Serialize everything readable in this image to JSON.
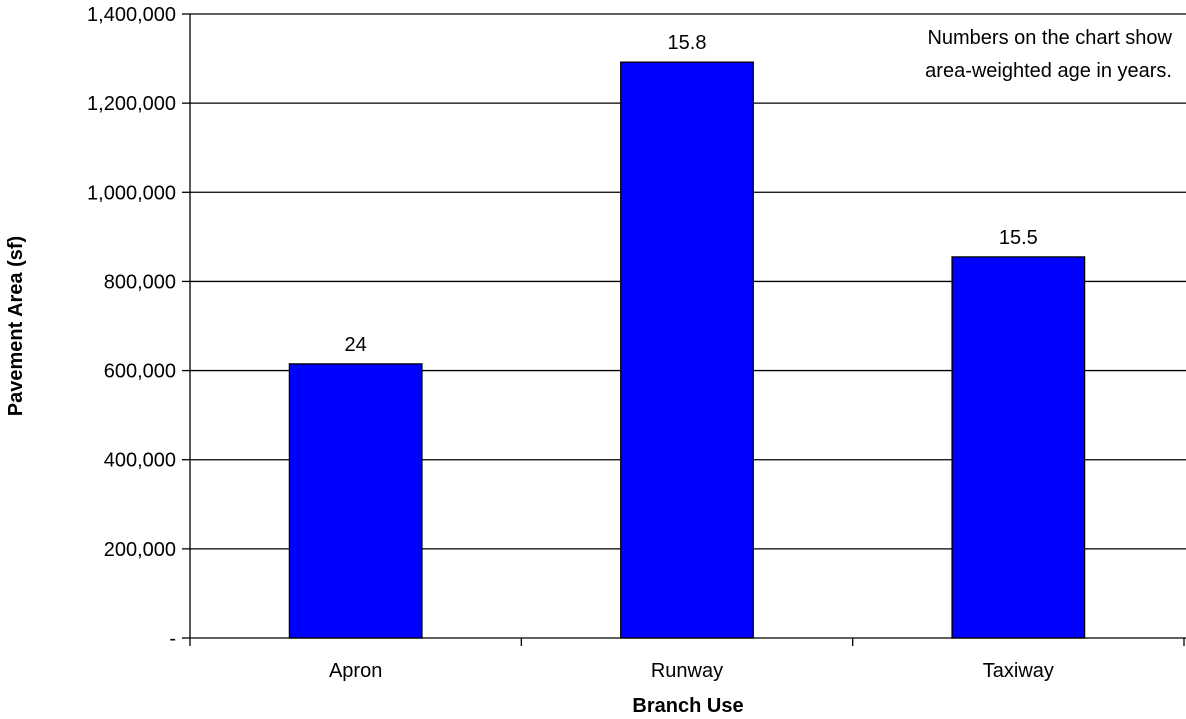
{
  "chart_data": {
    "type": "bar",
    "categories": [
      "Apron",
      "Runway",
      "Taxiway"
    ],
    "values": [
      615000,
      1292000,
      855000
    ],
    "data_labels": [
      "24",
      "15.8",
      "15.5"
    ],
    "xlabel": "Branch Use",
    "ylabel": "Pavement Area (sf)",
    "ylim": [
      0,
      1400000
    ],
    "yticks": [
      0,
      200000,
      400000,
      600000,
      800000,
      1000000,
      1200000,
      1400000
    ],
    "ytick_labels": [
      "-",
      "200,000",
      "400,000",
      "600,000",
      "800,000",
      "1,000,000",
      "1,200,000",
      "1,400,000"
    ],
    "annotation": [
      "Numbers on the chart show",
      "area-weighted age in years."
    ],
    "grid": true,
    "bar_color": "#0000FF",
    "bar_edge_color": "#000000"
  }
}
